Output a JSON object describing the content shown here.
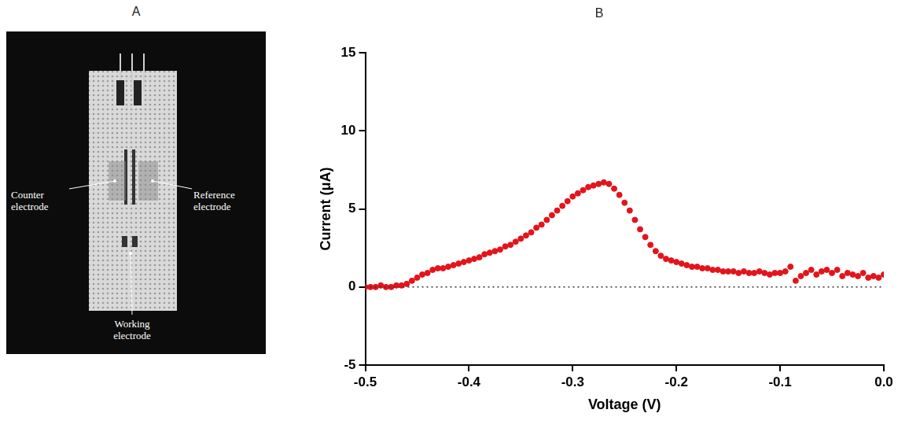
{
  "photo": {
    "panel": "A",
    "labels": {
      "counter": "Counter electrode",
      "reference": "Reference electrode",
      "working": "Working electrode"
    }
  },
  "chart_data": {
    "type": "scatter",
    "title": "B",
    "x_label": "Voltage (V)",
    "y_label": "Current (μA)",
    "x": [
      -0.5,
      -0.495,
      -0.49,
      -0.485,
      -0.48,
      -0.475,
      -0.47,
      -0.465,
      -0.46,
      -0.455,
      -0.45,
      -0.445,
      -0.44,
      -0.435,
      -0.43,
      -0.425,
      -0.42,
      -0.415,
      -0.41,
      -0.405,
      -0.4,
      -0.395,
      -0.39,
      -0.385,
      -0.38,
      -0.375,
      -0.37,
      -0.365,
      -0.36,
      -0.355,
      -0.35,
      -0.345,
      -0.34,
      -0.335,
      -0.33,
      -0.325,
      -0.32,
      -0.315,
      -0.31,
      -0.305,
      -0.3,
      -0.295,
      -0.29,
      -0.285,
      -0.28,
      -0.275,
      -0.27,
      -0.265,
      -0.26,
      -0.255,
      -0.25,
      -0.245,
      -0.24,
      -0.235,
      -0.23,
      -0.225,
      -0.22,
      -0.215,
      -0.21,
      -0.205,
      -0.2,
      -0.195,
      -0.19,
      -0.185,
      -0.18,
      -0.175,
      -0.17,
      -0.165,
      -0.16,
      -0.155,
      -0.15,
      -0.145,
      -0.14,
      -0.135,
      -0.13,
      -0.125,
      -0.12,
      -0.115,
      -0.11,
      -0.105,
      -0.1,
      -0.095,
      -0.09,
      -0.085,
      -0.08,
      -0.075,
      -0.07,
      -0.065,
      -0.06,
      -0.055,
      -0.05,
      -0.045,
      -0.04,
      -0.035,
      -0.03,
      -0.025,
      -0.02,
      -0.015,
      -0.01,
      -0.005,
      0.0
    ],
    "values": [
      0.0,
      0.0,
      0.0,
      0.1,
      0.0,
      0.0,
      0.1,
      0.1,
      0.2,
      0.4,
      0.6,
      0.8,
      0.9,
      1.1,
      1.2,
      1.2,
      1.3,
      1.4,
      1.5,
      1.6,
      1.7,
      1.8,
      1.9,
      2.1,
      2.2,
      2.3,
      2.4,
      2.6,
      2.7,
      2.9,
      3.1,
      3.3,
      3.5,
      3.8,
      4.0,
      4.3,
      4.6,
      4.9,
      5.2,
      5.5,
      5.8,
      6.0,
      6.2,
      6.4,
      6.5,
      6.6,
      6.7,
      6.6,
      6.3,
      5.9,
      5.4,
      4.9,
      4.3,
      3.7,
      3.2,
      2.7,
      2.3,
      2.0,
      1.8,
      1.7,
      1.6,
      1.5,
      1.4,
      1.3,
      1.3,
      1.2,
      1.2,
      1.1,
      1.1,
      1.0,
      1.0,
      1.0,
      0.9,
      1.0,
      0.9,
      0.9,
      1.0,
      0.9,
      0.8,
      0.9,
      0.9,
      1.0,
      1.3,
      0.4,
      0.7,
      0.9,
      1.1,
      0.8,
      1.0,
      1.1,
      0.9,
      1.1,
      0.7,
      0.9,
      0.8,
      0.7,
      0.9,
      0.6,
      0.7,
      0.6,
      0.8
    ],
    "color": "#e3141b",
    "marker": "circle",
    "xlim": [
      -0.5,
      0.0
    ],
    "xticks": [
      -0.5,
      -0.4,
      -0.3,
      -0.2,
      -0.1,
      {
        "value": 0.0,
        "label": "0.0"
      }
    ],
    "ylim": [
      -5,
      15
    ],
    "yticks": [
      -5,
      0,
      5,
      10,
      15
    ],
    "grid": false
  }
}
